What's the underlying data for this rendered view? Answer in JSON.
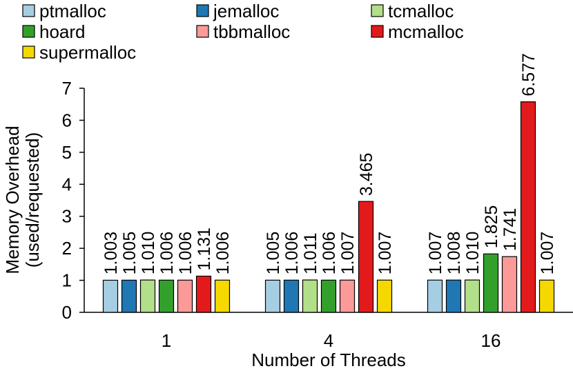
{
  "chart_data": {
    "type": "bar",
    "xlabel": "Number of Threads",
    "ylabel_lines": [
      "Memory Overhead",
      "(used/requested)"
    ],
    "ylim": [
      0,
      7
    ],
    "yticks": [
      "0",
      "1",
      "2",
      "3",
      "4",
      "5",
      "6",
      "7"
    ],
    "categories": [
      "1",
      "4",
      "16"
    ],
    "series": [
      {
        "name": "ptmalloc",
        "color": "#a6cee3",
        "values": [
          1.003,
          1.005,
          1.007
        ],
        "labels": [
          "1.003",
          "1.005",
          "1.007"
        ]
      },
      {
        "name": "jemalloc",
        "color": "#1f78b4",
        "values": [
          1.005,
          1.006,
          1.008
        ],
        "labels": [
          "1.005",
          "1.006",
          "1.008"
        ]
      },
      {
        "name": "tcmalloc",
        "color": "#b2df8a",
        "values": [
          1.01,
          1.011,
          1.01
        ],
        "labels": [
          "1.010",
          "1.011",
          "1.010"
        ]
      },
      {
        "name": "hoard",
        "color": "#33a02c",
        "values": [
          1.006,
          1.006,
          1.825
        ],
        "labels": [
          "1.006",
          "1.006",
          "1.825"
        ]
      },
      {
        "name": "tbbmalloc",
        "color": "#fb9a99",
        "values": [
          1.006,
          1.007,
          1.741
        ],
        "labels": [
          "1.006",
          "1.007",
          "1.741"
        ]
      },
      {
        "name": "mcmalloc",
        "color": "#e31a1c",
        "values": [
          1.131,
          3.465,
          6.577
        ],
        "labels": [
          "1.131",
          "3.465",
          "6.577"
        ]
      },
      {
        "name": "supermalloc",
        "color": "#f4d800",
        "values": [
          1.006,
          1.007,
          1.007
        ],
        "labels": [
          "1.006",
          "1.007",
          "1.007"
        ]
      }
    ],
    "legend_position": "top",
    "grid": false
  }
}
